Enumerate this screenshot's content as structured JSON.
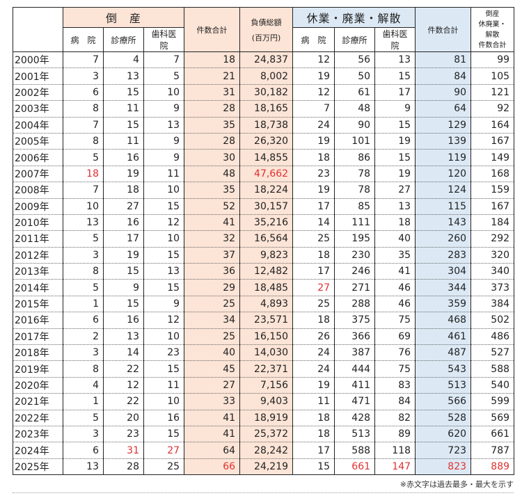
{
  "header": {
    "bankruptcy": "倒　産",
    "closure": "休業・廃業・解散",
    "hospital": "病　院",
    "clinic": "診療所",
    "dental": "歯科医院",
    "count_total": "件数合計",
    "debt_total": "負債総額",
    "debt_unit": "(百万円)",
    "grand_line1": "倒産",
    "grand_line2": "休廃業・解散",
    "grand_line3": "件数合計"
  },
  "rows": [
    {
      "year": "2000年",
      "b_hosp": "7",
      "b_clinic": "4",
      "b_dental": "7",
      "b_total": "18",
      "debt": "24,837",
      "c_hosp": "12",
      "c_clinic": "56",
      "c_dental": "13",
      "c_total": "81",
      "grand": "99"
    },
    {
      "year": "2001年",
      "b_hosp": "3",
      "b_clinic": "13",
      "b_dental": "5",
      "b_total": "21",
      "debt": "8,002",
      "c_hosp": "19",
      "c_clinic": "50",
      "c_dental": "15",
      "c_total": "84",
      "grand": "105"
    },
    {
      "year": "2002年",
      "b_hosp": "6",
      "b_clinic": "15",
      "b_dental": "10",
      "b_total": "31",
      "debt": "30,182",
      "c_hosp": "12",
      "c_clinic": "61",
      "c_dental": "17",
      "c_total": "90",
      "grand": "121"
    },
    {
      "year": "2003年",
      "b_hosp": "8",
      "b_clinic": "11",
      "b_dental": "9",
      "b_total": "28",
      "debt": "18,165",
      "c_hosp": "7",
      "c_clinic": "48",
      "c_dental": "9",
      "c_total": "64",
      "grand": "92"
    },
    {
      "year": "2004年",
      "b_hosp": "7",
      "b_clinic": "15",
      "b_dental": "13",
      "b_total": "35",
      "debt": "18,738",
      "c_hosp": "24",
      "c_clinic": "90",
      "c_dental": "15",
      "c_total": "129",
      "grand": "164"
    },
    {
      "year": "2005年",
      "b_hosp": "8",
      "b_clinic": "11",
      "b_dental": "9",
      "b_total": "28",
      "debt": "26,320",
      "c_hosp": "19",
      "c_clinic": "101",
      "c_dental": "19",
      "c_total": "139",
      "grand": "167"
    },
    {
      "year": "2006年",
      "b_hosp": "5",
      "b_clinic": "16",
      "b_dental": "9",
      "b_total": "30",
      "debt": "14,855",
      "c_hosp": "18",
      "c_clinic": "86",
      "c_dental": "15",
      "c_total": "119",
      "grand": "149"
    },
    {
      "year": "2007年",
      "b_hosp": "18",
      "b_clinic": "19",
      "b_dental": "11",
      "b_total": "48",
      "debt": "47,662",
      "c_hosp": "23",
      "c_clinic": "78",
      "c_dental": "19",
      "c_total": "120",
      "grand": "168",
      "red": [
        "b_hosp",
        "debt"
      ]
    },
    {
      "year": "2008年",
      "b_hosp": "7",
      "b_clinic": "18",
      "b_dental": "10",
      "b_total": "35",
      "debt": "18,224",
      "c_hosp": "19",
      "c_clinic": "78",
      "c_dental": "27",
      "c_total": "124",
      "grand": "159"
    },
    {
      "year": "2009年",
      "b_hosp": "10",
      "b_clinic": "27",
      "b_dental": "15",
      "b_total": "52",
      "debt": "30,157",
      "c_hosp": "17",
      "c_clinic": "85",
      "c_dental": "13",
      "c_total": "115",
      "grand": "167"
    },
    {
      "year": "2010年",
      "b_hosp": "13",
      "b_clinic": "16",
      "b_dental": "12",
      "b_total": "41",
      "debt": "35,216",
      "c_hosp": "14",
      "c_clinic": "111",
      "c_dental": "18",
      "c_total": "143",
      "grand": "184"
    },
    {
      "year": "2011年",
      "b_hosp": "5",
      "b_clinic": "17",
      "b_dental": "10",
      "b_total": "32",
      "debt": "16,564",
      "c_hosp": "25",
      "c_clinic": "195",
      "c_dental": "40",
      "c_total": "260",
      "grand": "292"
    },
    {
      "year": "2012年",
      "b_hosp": "3",
      "b_clinic": "19",
      "b_dental": "15",
      "b_total": "37",
      "debt": "9,823",
      "c_hosp": "18",
      "c_clinic": "230",
      "c_dental": "35",
      "c_total": "283",
      "grand": "320"
    },
    {
      "year": "2013年",
      "b_hosp": "8",
      "b_clinic": "15",
      "b_dental": "13",
      "b_total": "36",
      "debt": "12,482",
      "c_hosp": "17",
      "c_clinic": "246",
      "c_dental": "41",
      "c_total": "304",
      "grand": "340"
    },
    {
      "year": "2014年",
      "b_hosp": "5",
      "b_clinic": "9",
      "b_dental": "15",
      "b_total": "29",
      "debt": "18,485",
      "c_hosp": "27",
      "c_clinic": "271",
      "c_dental": "46",
      "c_total": "344",
      "grand": "373",
      "red": [
        "c_hosp"
      ]
    },
    {
      "year": "2015年",
      "b_hosp": "1",
      "b_clinic": "15",
      "b_dental": "9",
      "b_total": "25",
      "debt": "4,893",
      "c_hosp": "25",
      "c_clinic": "288",
      "c_dental": "46",
      "c_total": "359",
      "grand": "384"
    },
    {
      "year": "2016年",
      "b_hosp": "6",
      "b_clinic": "16",
      "b_dental": "12",
      "b_total": "34",
      "debt": "23,571",
      "c_hosp": "18",
      "c_clinic": "375",
      "c_dental": "75",
      "c_total": "468",
      "grand": "502"
    },
    {
      "year": "2017年",
      "b_hosp": "2",
      "b_clinic": "13",
      "b_dental": "10",
      "b_total": "25",
      "debt": "16,150",
      "c_hosp": "26",
      "c_clinic": "366",
      "c_dental": "69",
      "c_total": "461",
      "grand": "486"
    },
    {
      "year": "2018年",
      "b_hosp": "3",
      "b_clinic": "14",
      "b_dental": "23",
      "b_total": "40",
      "debt": "14,030",
      "c_hosp": "24",
      "c_clinic": "387",
      "c_dental": "76",
      "c_total": "487",
      "grand": "527"
    },
    {
      "year": "2019年",
      "b_hosp": "8",
      "b_clinic": "22",
      "b_dental": "15",
      "b_total": "45",
      "debt": "22,371",
      "c_hosp": "24",
      "c_clinic": "444",
      "c_dental": "75",
      "c_total": "543",
      "grand": "588"
    },
    {
      "year": "2020年",
      "b_hosp": "4",
      "b_clinic": "12",
      "b_dental": "11",
      "b_total": "27",
      "debt": "7,156",
      "c_hosp": "19",
      "c_clinic": "411",
      "c_dental": "83",
      "c_total": "513",
      "grand": "540"
    },
    {
      "year": "2021年",
      "b_hosp": "1",
      "b_clinic": "22",
      "b_dental": "10",
      "b_total": "33",
      "debt": "9,403",
      "c_hosp": "11",
      "c_clinic": "471",
      "c_dental": "84",
      "c_total": "566",
      "grand": "599"
    },
    {
      "year": "2022年",
      "b_hosp": "5",
      "b_clinic": "20",
      "b_dental": "16",
      "b_total": "41",
      "debt": "18,919",
      "c_hosp": "18",
      "c_clinic": "428",
      "c_dental": "82",
      "c_total": "528",
      "grand": "569"
    },
    {
      "year": "2023年",
      "b_hosp": "3",
      "b_clinic": "23",
      "b_dental": "15",
      "b_total": "41",
      "debt": "25,372",
      "c_hosp": "18",
      "c_clinic": "513",
      "c_dental": "89",
      "c_total": "620",
      "grand": "661"
    },
    {
      "year": "2024年",
      "b_hosp": "6",
      "b_clinic": "31",
      "b_dental": "27",
      "b_total": "64",
      "debt": "28,242",
      "c_hosp": "17",
      "c_clinic": "588",
      "c_dental": "118",
      "c_total": "723",
      "grand": "787",
      "red": [
        "b_clinic",
        "b_dental"
      ]
    },
    {
      "year": "2025年",
      "b_hosp": "13",
      "b_clinic": "28",
      "b_dental": "25",
      "b_total": "66",
      "debt": "24,219",
      "c_hosp": "15",
      "c_clinic": "661",
      "c_dental": "147",
      "c_total": "823",
      "grand": "889",
      "red": [
        "b_total",
        "c_clinic",
        "c_dental",
        "c_total",
        "grand"
      ]
    }
  ],
  "note": "※赤文字は過去最多・最大を示す",
  "colors": {
    "bankruptcy_fill": "#fce4d6",
    "closure_fill": "#dce9f5",
    "highlight_text": "#e03030"
  }
}
